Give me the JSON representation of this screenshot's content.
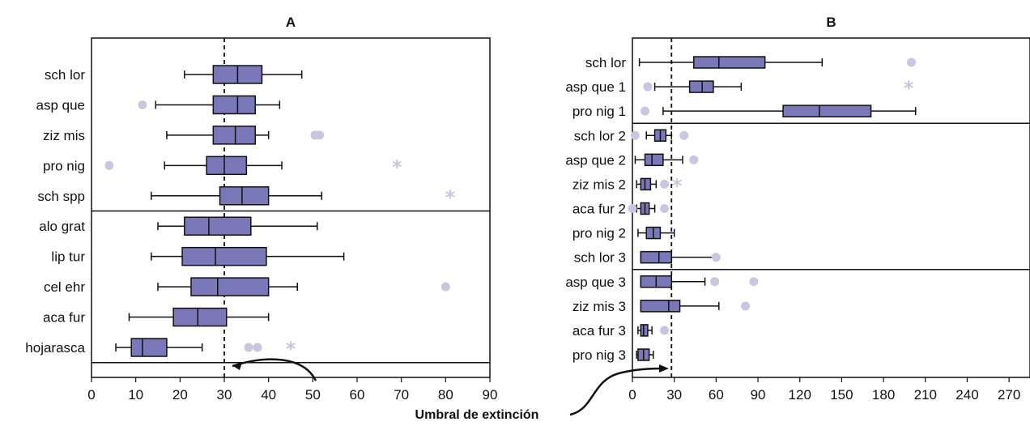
{
  "colors": {
    "box": "#7b78b9",
    "outlier": "#c8c6e2",
    "line": "#111111"
  },
  "annotation": "Umbral de extinción",
  "chart_data": [
    {
      "type": "box",
      "title": "A",
      "xlim": [
        0,
        90
      ],
      "xticks": [
        0,
        10,
        20,
        30,
        40,
        50,
        60,
        70,
        80,
        90
      ],
      "threshold": 30,
      "group_breaks": [
        4,
        9
      ],
      "categories": [
        "sch lor",
        "asp que",
        "ziz mis",
        "pro nig",
        "sch spp",
        "alo grat",
        "lip tur",
        "cel ehr",
        "aca fur",
        "hojarasca"
      ],
      "boxes": [
        {
          "min": 21,
          "q1": 27.5,
          "median": 33,
          "q3": 38.5,
          "max": 47.5,
          "outliers": [],
          "extremes": []
        },
        {
          "min": 14.5,
          "q1": 27.5,
          "median": 33,
          "q3": 37,
          "max": 42.5,
          "outliers": [
            11.5
          ],
          "extremes": []
        },
        {
          "min": 17,
          "q1": 27.5,
          "median": 32.5,
          "q3": 37,
          "max": 40,
          "outliers": [
            50.5,
            51.5
          ],
          "extremes": []
        },
        {
          "min": 16.5,
          "q1": 26,
          "median": 30,
          "q3": 35,
          "max": 43,
          "outliers": [
            4
          ],
          "extremes": [
            69
          ]
        },
        {
          "min": 13.5,
          "q1": 29,
          "median": 34,
          "q3": 40,
          "max": 52,
          "outliers": [],
          "extremes": [
            81
          ]
        },
        {
          "min": 15,
          "q1": 21,
          "median": 26.5,
          "q3": 36,
          "max": 51,
          "outliers": [],
          "extremes": []
        },
        {
          "min": 13.5,
          "q1": 20.5,
          "median": 28,
          "q3": 39.5,
          "max": 57,
          "outliers": [],
          "extremes": []
        },
        {
          "min": 15,
          "q1": 22.5,
          "median": 28.5,
          "q3": 40,
          "max": 46.5,
          "outliers": [
            80
          ],
          "extremes": []
        },
        {
          "min": 8.5,
          "q1": 18.5,
          "median": 24,
          "q3": 30.5,
          "max": 40,
          "outliers": [],
          "extremes": []
        },
        {
          "min": 5.5,
          "q1": 9,
          "median": 11.5,
          "q3": 17,
          "max": 25,
          "outliers": [
            35.5,
            37.5
          ],
          "extremes": [
            45
          ]
        }
      ]
    },
    {
      "type": "box",
      "title": "B",
      "xlim": [
        0,
        285
      ],
      "xticks": [
        0,
        30,
        60,
        90,
        120,
        150,
        180,
        210,
        240,
        270
      ],
      "threshold": 28,
      "group_breaks": [
        2,
        8
      ],
      "categories": [
        "sch lor",
        "asp que 1",
        "pro nig 1",
        "sch lor 2",
        "asp que 2",
        "ziz mis 2",
        "aca fur 2",
        "pro nig 2",
        "sch lor 3",
        "asp que 3",
        "ziz mis 3",
        "aca fur 3",
        "pro nig 3"
      ],
      "boxes": [
        {
          "min": 5,
          "q1": 44,
          "median": 62,
          "q3": 95,
          "max": 136,
          "outliers": [
            200
          ],
          "extremes": []
        },
        {
          "min": 16,
          "q1": 41,
          "median": 50,
          "q3": 58,
          "max": 78,
          "outliers": [
            11
          ],
          "extremes": [
            198
          ]
        },
        {
          "min": 22,
          "q1": 108,
          "median": 134,
          "q3": 171,
          "max": 203,
          "outliers": [
            9
          ],
          "extremes": []
        },
        {
          "min": 10,
          "q1": 16,
          "median": 20,
          "q3": 24,
          "max": 28,
          "outliers": [
            2,
            37
          ],
          "extremes": []
        },
        {
          "min": 2,
          "q1": 9,
          "median": 14,
          "q3": 22,
          "max": 36,
          "outliers": [
            44
          ],
          "extremes": []
        },
        {
          "min": 3,
          "q1": 6,
          "median": 9,
          "q3": 13,
          "max": 17,
          "outliers": [
            23
          ],
          "extremes": [
            32
          ]
        },
        {
          "min": 3,
          "q1": 6,
          "median": 9,
          "q3": 12,
          "max": 16,
          "outliers": [
            0,
            23
          ],
          "extremes": []
        },
        {
          "min": 4,
          "q1": 10,
          "median": 15,
          "q3": 20,
          "max": 30,
          "outliers": [],
          "extremes": []
        },
        {
          "min": 6,
          "q1": 6,
          "median": 19,
          "q3": 28,
          "max": 59,
          "outliers": [
            60
          ],
          "extremes": []
        },
        {
          "min": 6,
          "q1": 6,
          "median": 17,
          "q3": 28,
          "max": 52,
          "outliers": [
            59,
            87
          ],
          "extremes": []
        },
        {
          "min": 6,
          "q1": 6,
          "median": 26,
          "q3": 34,
          "max": 62,
          "outliers": [
            81
          ],
          "extremes": []
        },
        {
          "min": 4,
          "q1": 6,
          "median": 8,
          "q3": 11,
          "max": 14,
          "outliers": [
            23
          ],
          "extremes": []
        },
        {
          "min": 3,
          "q1": 4,
          "median": 8,
          "q3": 12,
          "max": 15,
          "outliers": [],
          "extremes": []
        }
      ]
    }
  ]
}
